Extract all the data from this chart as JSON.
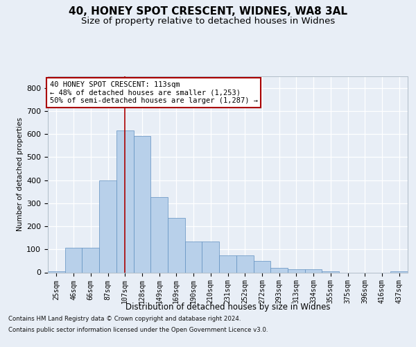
{
  "title_line1": "40, HONEY SPOT CRESCENT, WIDNES, WA8 3AL",
  "title_line2": "Size of property relative to detached houses in Widnes",
  "xlabel": "Distribution of detached houses by size in Widnes",
  "ylabel": "Number of detached properties",
  "categories": [
    "25sqm",
    "46sqm",
    "66sqm",
    "87sqm",
    "107sqm",
    "128sqm",
    "149sqm",
    "169sqm",
    "190sqm",
    "210sqm",
    "231sqm",
    "252sqm",
    "272sqm",
    "293sqm",
    "313sqm",
    "334sqm",
    "355sqm",
    "375sqm",
    "396sqm",
    "416sqm",
    "437sqm"
  ],
  "bar_values": [
    5,
    107,
    107,
    400,
    615,
    590,
    325,
    235,
    135,
    135,
    75,
    75,
    50,
    20,
    15,
    15,
    5,
    0,
    0,
    0,
    5
  ],
  "bar_color": "#b8d0ea",
  "bar_edge_color": "#6090c0",
  "vline_color": "#aa0000",
  "vline_position": 4.0,
  "annotation_text": "40 HONEY SPOT CRESCENT: 113sqm\n← 48% of detached houses are smaller (1,253)\n50% of semi-detached houses are larger (1,287) →",
  "footnote1": "Contains HM Land Registry data © Crown copyright and database right 2024.",
  "footnote2": "Contains public sector information licensed under the Open Government Licence v3.0.",
  "ylim": [
    0,
    850
  ],
  "yticks": [
    0,
    100,
    200,
    300,
    400,
    500,
    600,
    700,
    800
  ],
  "bg_color": "#e8eef6",
  "grid_color": "#ffffff",
  "title_fontsize": 11,
  "subtitle_fontsize": 9.5
}
